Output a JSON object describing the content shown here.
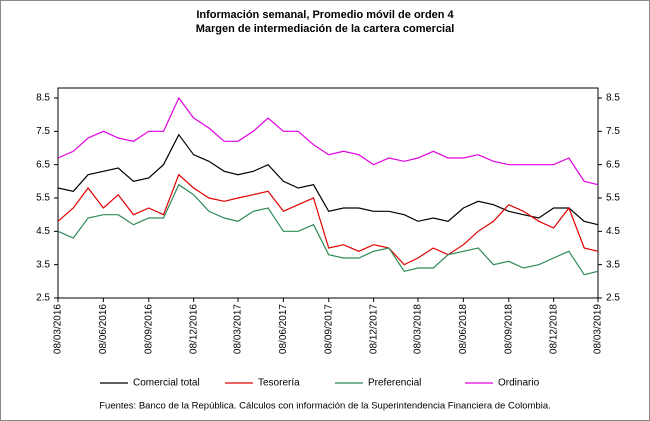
{
  "chart_data": {
    "type": "line",
    "title": "Información semanal, Promedio móvil de orden 4",
    "subtitle": "Margen de intermediación de la cartera comercial",
    "x": [
      "08/03/2016",
      "08/04/2016",
      "08/05/2016",
      "08/06/2016",
      "08/07/2016",
      "08/08/2016",
      "08/09/2016",
      "08/10/2016",
      "08/11/2016",
      "08/12/2016",
      "08/01/2017",
      "08/02/2017",
      "08/03/2017",
      "08/04/2017",
      "08/05/2017",
      "08/06/2017",
      "08/07/2017",
      "08/08/2017",
      "08/09/2017",
      "08/10/2017",
      "08/11/2017",
      "08/12/2017",
      "08/01/2018",
      "08/02/2018",
      "08/03/2018",
      "08/04/2018",
      "08/05/2018",
      "08/06/2018",
      "08/07/2018",
      "08/08/2018",
      "08/09/2018",
      "08/10/2018",
      "08/11/2018",
      "08/12/2018",
      "08/01/2019",
      "08/02/2019",
      "08/03/2019"
    ],
    "series": [
      {
        "name": "Comercial total",
        "color": "#000000",
        "values": [
          5.8,
          5.7,
          6.2,
          6.3,
          6.4,
          6.0,
          6.1,
          6.5,
          7.4,
          6.8,
          6.6,
          6.3,
          6.2,
          6.3,
          6.5,
          6.0,
          5.8,
          5.9,
          5.1,
          5.2,
          5.2,
          5.1,
          5.1,
          5.0,
          4.8,
          4.9,
          4.8,
          5.2,
          5.4,
          5.3,
          5.1,
          5.0,
          4.9,
          5.2,
          5.2,
          4.8,
          4.7
        ]
      },
      {
        "name": "Tesorería",
        "color": "#e00000",
        "values": [
          4.8,
          5.2,
          5.8,
          5.2,
          5.6,
          5.0,
          5.2,
          5.0,
          6.2,
          5.8,
          5.5,
          5.4,
          5.5,
          5.6,
          5.7,
          5.1,
          5.3,
          5.5,
          4.0,
          4.1,
          3.9,
          4.1,
          4.0,
          3.5,
          3.7,
          4.0,
          3.8,
          4.1,
          4.5,
          4.8,
          5.3,
          5.1,
          4.8,
          4.6,
          5.2,
          4.0,
          3.9
        ]
      },
      {
        "name": "Preferencial",
        "color": "#2e8b57",
        "values": [
          4.5,
          4.3,
          4.9,
          5.0,
          5.0,
          4.7,
          4.9,
          4.9,
          5.9,
          5.6,
          5.1,
          4.9,
          4.8,
          5.1,
          5.2,
          4.5,
          4.5,
          4.7,
          3.8,
          3.7,
          3.7,
          3.9,
          4.0,
          3.3,
          3.4,
          3.4,
          3.8,
          3.9,
          4.0,
          3.5,
          3.6,
          3.4,
          3.5,
          3.7,
          3.9,
          3.2,
          3.3
        ]
      },
      {
        "name": "Ordinario",
        "color": "#e000e0",
        "values": [
          6.7,
          6.9,
          7.3,
          7.5,
          7.3,
          7.2,
          7.5,
          7.5,
          8.5,
          7.9,
          7.6,
          7.2,
          7.2,
          7.5,
          7.9,
          7.5,
          7.5,
          7.1,
          6.8,
          6.9,
          6.8,
          6.5,
          6.7,
          6.6,
          6.7,
          6.9,
          6.7,
          6.7,
          6.8,
          6.6,
          6.5,
          6.5,
          6.5,
          6.5,
          6.7,
          6.0,
          5.9
        ]
      }
    ],
    "xticks": [
      "08/03/2016",
      "08/06/2016",
      "08/09/2016",
      "08/12/2016",
      "08/03/2017",
      "08/06/2017",
      "08/09/2017",
      "08/12/2017",
      "08/03/2018",
      "08/06/2018",
      "08/09/2018",
      "08/12/2018",
      "08/03/2019"
    ],
    "ylim": [
      2.5,
      8.8
    ],
    "yticks": [
      2.5,
      3.5,
      4.5,
      5.5,
      6.5,
      7.5,
      8.5
    ],
    "y2lim": [
      2.5,
      8.8
    ],
    "y2ticks": [
      2.5,
      3.5,
      4.5,
      5.5,
      6.5,
      7.5,
      8.5
    ],
    "legend": "bottom",
    "source": "Fuentes: Banco de la República. Cálculos con información de la Superintendencia Financiera de Colombia."
  }
}
